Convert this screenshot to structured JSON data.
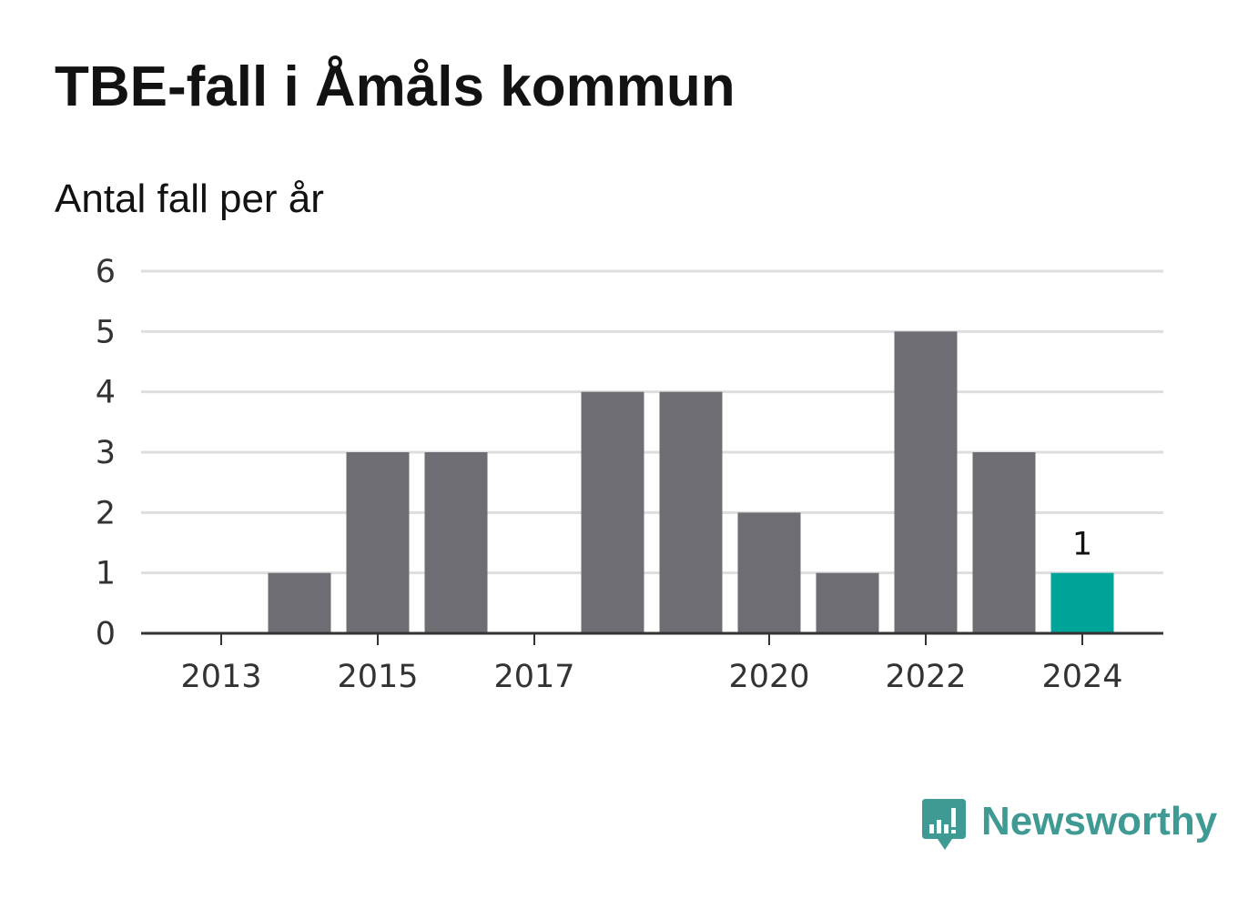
{
  "title": "TBE-fall i Åmåls kommun",
  "subtitle": "Antal fall per år",
  "brand": {
    "name": "Newsworthy",
    "color": "#3f9a94",
    "icon": "newsworthy-bar-chart-speech-bubble-icon"
  },
  "colors": {
    "bar": "#6e6d73",
    "highlight": "#00a398",
    "gridline": "#dedede",
    "axis": "#333333"
  },
  "chart_data": {
    "type": "bar",
    "title": "TBE-fall i Åmåls kommun",
    "subtitle": "Antal fall per år",
    "categories": [
      "2013",
      "2014",
      "2015",
      "2016",
      "2017",
      "2018",
      "2019",
      "2020",
      "2021",
      "2022",
      "2023",
      "2024"
    ],
    "values": [
      0,
      1,
      3,
      3,
      0,
      4,
      4,
      2,
      1,
      5,
      3,
      1
    ],
    "x_tick_labels": [
      "2013",
      "2015",
      "2017",
      "2020",
      "2022",
      "2024"
    ],
    "y_ticks": [
      0,
      1,
      2,
      3,
      4,
      5,
      6
    ],
    "ylim": [
      0,
      6
    ],
    "xlabel": "",
    "ylabel": "",
    "grid": true,
    "legend": "none",
    "highlight_category": "2024",
    "data_labels": [
      {
        "category": "2024",
        "text": "1"
      }
    ]
  }
}
